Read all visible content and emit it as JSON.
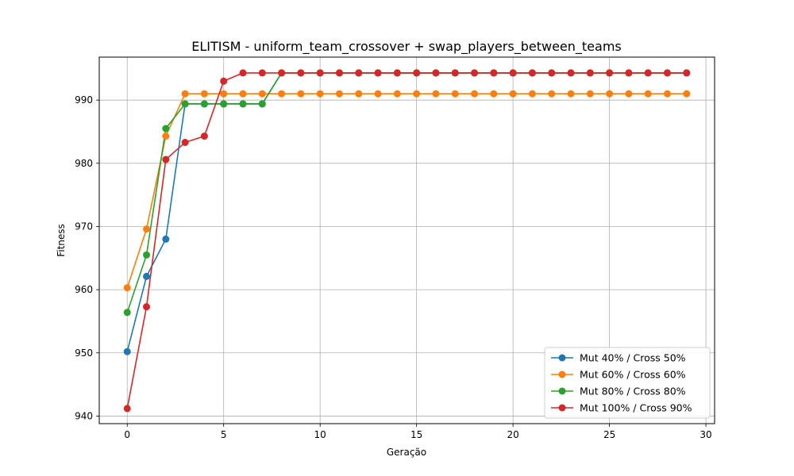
{
  "chart_data": {
    "type": "line",
    "title": "ELITISM - uniform_team_crossover + swap_players_between_teams",
    "xlabel": "Geração",
    "ylabel": "Fitness",
    "xlim": [
      -1.45,
      30.45
    ],
    "ylim": [
      938.8,
      996.8
    ],
    "xticks": [
      0,
      5,
      10,
      15,
      20,
      25,
      30
    ],
    "yticks": [
      940,
      950,
      960,
      970,
      980,
      990
    ],
    "grid": true,
    "legend_position": "lower-right",
    "x": [
      0,
      1,
      2,
      3,
      4,
      5,
      6,
      7,
      8,
      9,
      10,
      11,
      12,
      13,
      14,
      15,
      16,
      17,
      18,
      19,
      20,
      21,
      22,
      23,
      24,
      25,
      26,
      27,
      28,
      29
    ],
    "series": [
      {
        "name": "Mut 40% / Cross 50%",
        "color": "#1f77b4",
        "values": [
          950.2,
          962.1,
          968.0,
          989.4,
          989.4,
          989.4,
          989.4,
          989.4,
          994.3,
          994.3,
          994.3,
          994.3,
          994.3,
          994.3,
          994.3,
          994.3,
          994.3,
          994.3,
          994.3,
          994.3,
          994.3,
          994.3,
          994.3,
          994.3,
          994.3,
          994.3,
          994.3,
          994.3,
          994.3,
          994.3
        ]
      },
      {
        "name": "Mut 60% / Cross 60%",
        "color": "#ff7f0e",
        "values": [
          960.3,
          969.6,
          984.3,
          991.0,
          991.0,
          991.0,
          991.0,
          991.0,
          991.0,
          991.0,
          991.0,
          991.0,
          991.0,
          991.0,
          991.0,
          991.0,
          991.0,
          991.0,
          991.0,
          991.0,
          991.0,
          991.0,
          991.0,
          991.0,
          991.0,
          991.0,
          991.0,
          991.0,
          991.0,
          991.0
        ]
      },
      {
        "name": "Mut 80% / Cross 80%",
        "color": "#2ca02c",
        "values": [
          956.4,
          965.5,
          985.5,
          989.4,
          989.4,
          989.4,
          989.4,
          989.4,
          994.3,
          994.3,
          994.3,
          994.3,
          994.3,
          994.3,
          994.3,
          994.3,
          994.3,
          994.3,
          994.3,
          994.3,
          994.3,
          994.3,
          994.3,
          994.3,
          994.3,
          994.3,
          994.3,
          994.3,
          994.3,
          994.3
        ]
      },
      {
        "name": "Mut 100% / Cross 90%",
        "color": "#d62728",
        "values": [
          941.2,
          957.3,
          980.6,
          983.3,
          984.3,
          993.0,
          994.3,
          994.3,
          994.3,
          994.3,
          994.3,
          994.3,
          994.3,
          994.3,
          994.3,
          994.3,
          994.3,
          994.3,
          994.3,
          994.3,
          994.3,
          994.3,
          994.3,
          994.3,
          994.3,
          994.3,
          994.3,
          994.3,
          994.3,
          994.3
        ]
      }
    ]
  }
}
